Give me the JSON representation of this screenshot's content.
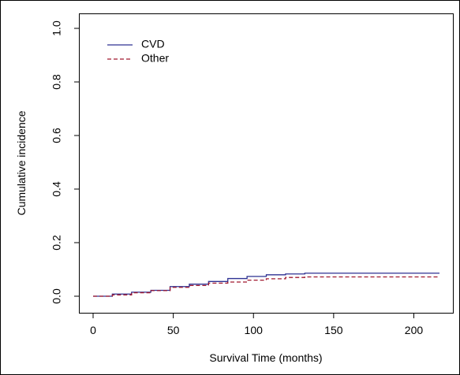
{
  "chart_data": {
    "type": "line",
    "line_shape": "step",
    "title": "",
    "xlabel": "Survival Time (months)",
    "ylabel": "Cumulative incidence",
    "xlim": [
      0,
      216
    ],
    "ylim": [
      0,
      1.0
    ],
    "xticks": [
      0,
      50,
      100,
      150,
      200
    ],
    "xtick_labels": [
      "0",
      "50",
      "100",
      "150",
      "200"
    ],
    "yticks": [
      0.0,
      0.2,
      0.4,
      0.6,
      0.8,
      1.0
    ],
    "ytick_labels": [
      "0.0",
      "0.2",
      "0.4",
      "0.6",
      "0.8",
      "1.0"
    ],
    "grid": false,
    "legend_position": "top-left",
    "series": [
      {
        "name": "CVD",
        "color": "#2e3192",
        "dash": "solid",
        "x": [
          0,
          12,
          24,
          36,
          48,
          60,
          72,
          84,
          96,
          108,
          120,
          132,
          216
        ],
        "y": [
          0.0,
          0.008,
          0.015,
          0.022,
          0.036,
          0.045,
          0.055,
          0.066,
          0.074,
          0.08,
          0.083,
          0.086,
          0.086
        ]
      },
      {
        "name": "Other",
        "color": "#a0182f",
        "dash": "dashed",
        "x": [
          0,
          12,
          24,
          36,
          48,
          60,
          72,
          84,
          96,
          108,
          120,
          132,
          216
        ],
        "y": [
          0.0,
          0.005,
          0.013,
          0.021,
          0.033,
          0.04,
          0.049,
          0.053,
          0.06,
          0.065,
          0.07,
          0.072,
          0.072
        ]
      }
    ]
  }
}
